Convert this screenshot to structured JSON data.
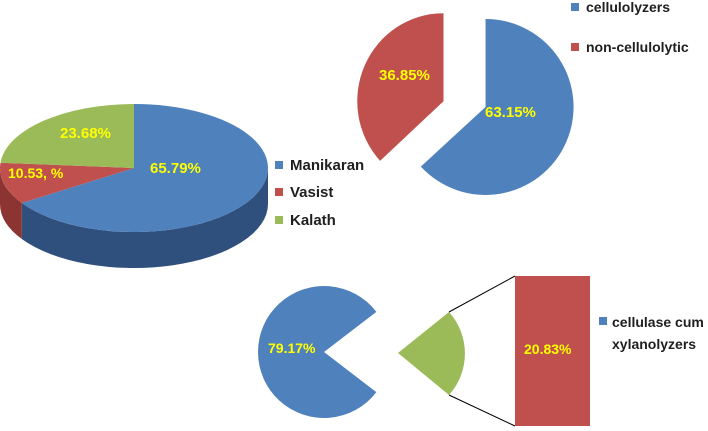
{
  "colors": {
    "blue": "#4f81bd",
    "blue_dark": "#2f4f7d",
    "red": "#c0504d",
    "red_dark": "#8c3432",
    "green": "#9bbb59",
    "green_dark": "#6f8a3c",
    "value_label": "#ffff00"
  },
  "chart_data": [
    {
      "type": "pie",
      "style": "3d",
      "title": "",
      "slices": [
        {
          "name": "Manikaran",
          "value": 65.79,
          "label": "65.79%",
          "color": "#4f81bd"
        },
        {
          "name": "Vasist",
          "value": 10.53,
          "label": "10.53, %",
          "color": "#c0504d"
        },
        {
          "name": "Kalath",
          "value": 23.68,
          "label": "23.68%",
          "color": "#9bbb59"
        }
      ],
      "legend": [
        "Manikaran",
        "Vasist",
        "Kalath"
      ],
      "legend_position": "right"
    },
    {
      "type": "pie",
      "style": "exploded",
      "title": "",
      "slices": [
        {
          "name": "cellulolyzers",
          "value": 63.15,
          "label": "63.15%",
          "color": "#4f81bd"
        },
        {
          "name": "non-cellulolytic",
          "value": 36.85,
          "label": "36.85%",
          "color": "#c0504d"
        }
      ],
      "legend": [
        "cellulolyzers",
        "non-cellulolytic"
      ],
      "legend_position": "top-right"
    },
    {
      "type": "pie",
      "style": "pie-of-bar",
      "title": "",
      "slices": [
        {
          "name": "",
          "value": 79.17,
          "label": "79.17%",
          "color": "#4f81bd"
        },
        {
          "name": "cellulase cum xylanolyzers",
          "value": 20.83,
          "label": "20.83%",
          "color": "#9bbb59"
        }
      ],
      "bar": {
        "value": 20.83,
        "label": "20.83%",
        "color": "#c0504d"
      },
      "legend": [
        "cellulase cum xylanolyzers"
      ],
      "legend_lines": [
        "cellulase cum",
        "xylanolyzers"
      ],
      "legend_position": "right"
    }
  ]
}
